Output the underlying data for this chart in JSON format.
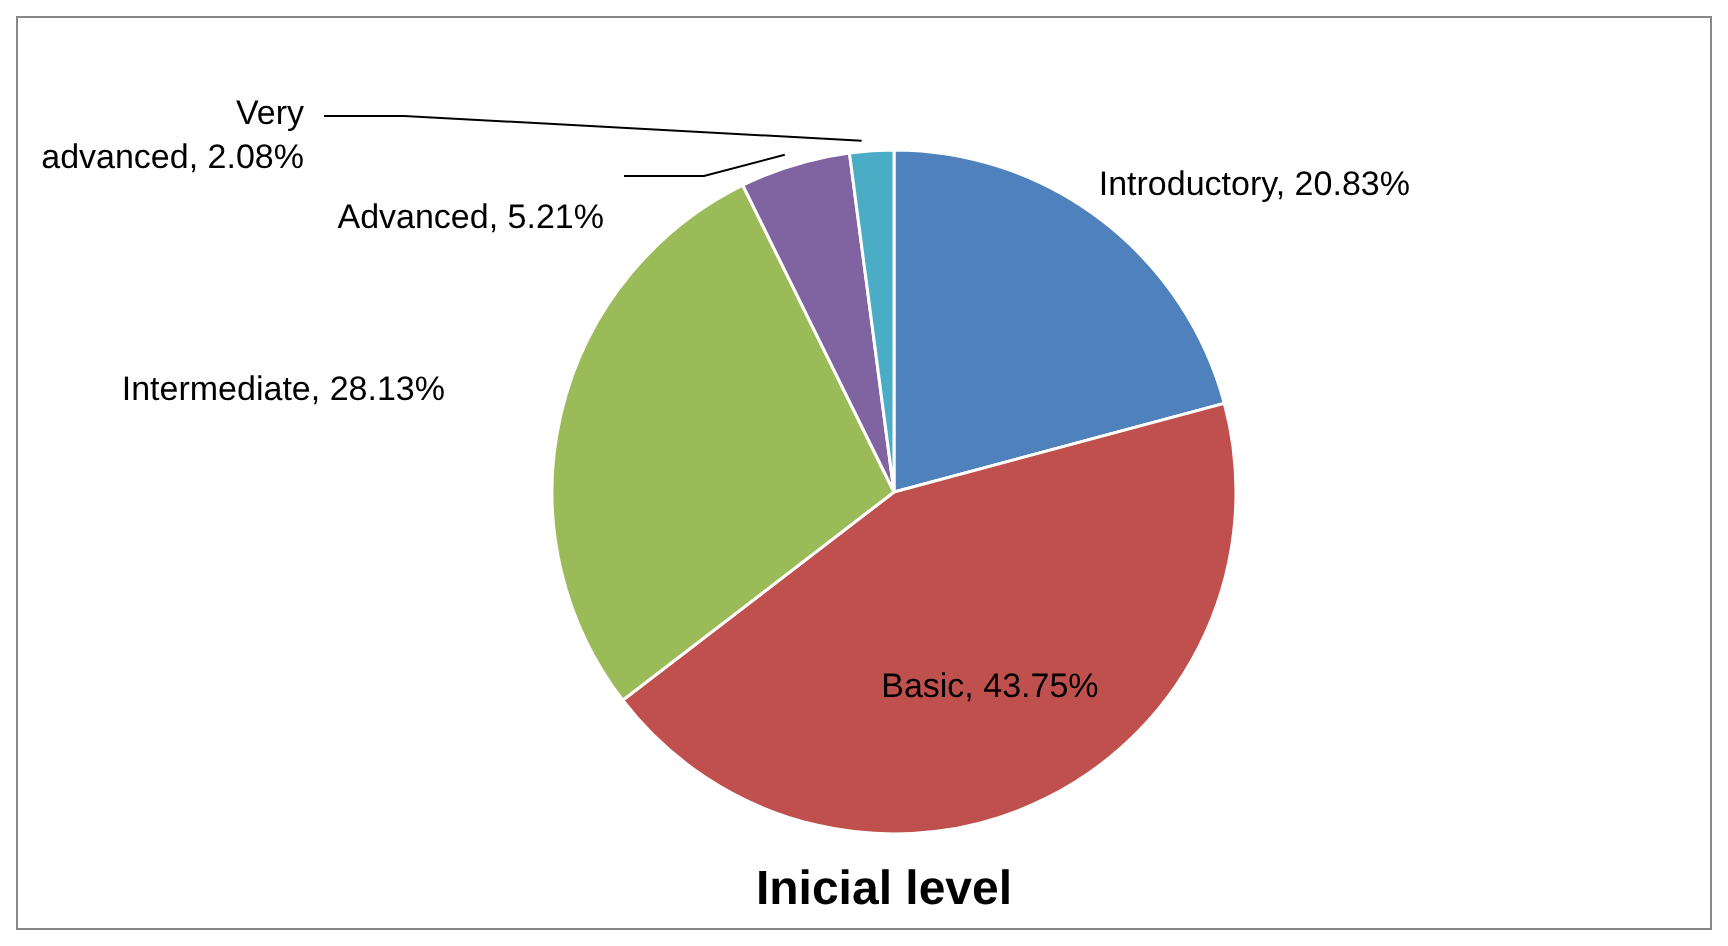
{
  "chart_data": {
    "type": "pie",
    "title": "Inicial level",
    "categories": [
      "Introductory",
      "Basic",
      "Intermediate",
      "Advanced",
      "Very advanced"
    ],
    "values": [
      20.83,
      43.75,
      28.13,
      5.21,
      2.08
    ],
    "colors": [
      "#4f81bd",
      "#c0504d",
      "#9bbb59",
      "#8064a2",
      "#4bacc6"
    ],
    "value_labels": [
      "20.83%",
      "43.75%",
      "28.13%",
      "5.21%",
      "2.08%"
    ],
    "legend": false
  }
}
